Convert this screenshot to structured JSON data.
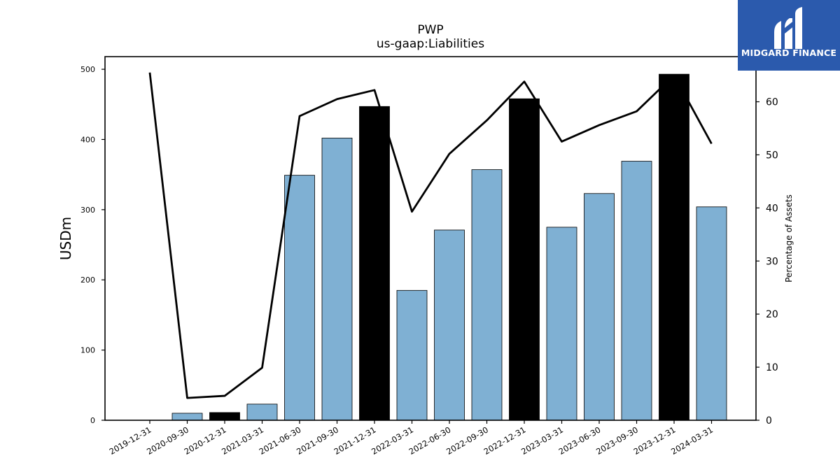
{
  "chart_data": {
    "type": "bar+line",
    "title": "PWP",
    "subtitle": "us-gaap:Liabilities",
    "ylabel": "USDm",
    "y2label": "Percentage of Assets",
    "ylim": [
      0,
      518
    ],
    "y2lim": [
      0,
      68.5
    ],
    "yticks": [
      0,
      100,
      200,
      300,
      400,
      500
    ],
    "y2ticks": [
      0,
      10,
      20,
      30,
      40,
      50,
      60
    ],
    "categories": [
      "2019-12-31",
      "2020-09-30",
      "2020-12-31",
      "2021-03-31",
      "2021-06-30",
      "2021-09-30",
      "2021-12-31",
      "2022-03-31",
      "2022-06-30",
      "2022-09-30",
      "2022-12-31",
      "2023-03-31",
      "2023-06-30",
      "2023-09-30",
      "2023-12-31",
      "2024-03-31"
    ],
    "bars": {
      "name": "Liabilities (USDm)",
      "values": [
        0,
        10,
        11,
        23,
        349,
        402,
        447,
        185,
        271,
        357,
        458,
        275,
        323,
        369,
        493,
        304
      ],
      "highlight": [
        false,
        false,
        true,
        false,
        false,
        false,
        true,
        false,
        false,
        false,
        true,
        false,
        false,
        false,
        true,
        false
      ],
      "color": "#7fb0d3",
      "highlight_color": "#000000"
    },
    "line": {
      "name": "Percentage of Assets",
      "values": [
        65.5,
        4.2,
        4.6,
        9.9,
        57.3,
        60.5,
        62.2,
        39.3,
        50.2,
        56.5,
        63.8,
        52.5,
        55.6,
        58.2,
        65.0,
        52.1
      ],
      "color": "#000000"
    },
    "grid": false,
    "legend": "none"
  },
  "logo": {
    "text": "MIDGARD FINANCE",
    "background": "#2b5aad"
  }
}
